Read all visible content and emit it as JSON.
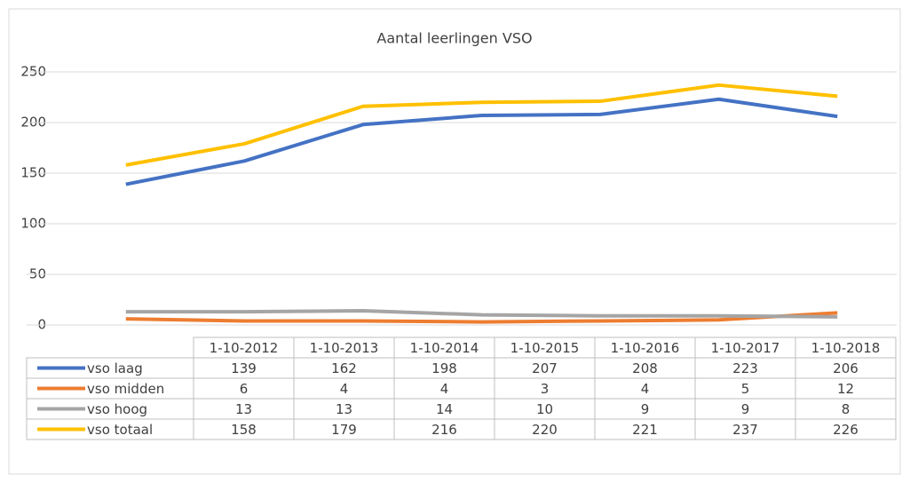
{
  "chart_data": {
    "type": "line",
    "title": "Aantal leerlingen VSO",
    "categories": [
      "1-10-2012",
      "1-10-2013",
      "1-10-2014",
      "1-10-2015",
      "1-10-2016",
      "1-10-2017",
      "1-10-2018"
    ],
    "series": [
      {
        "name": "vso laag",
        "color": "#4472c4",
        "values": [
          139,
          162,
          198,
          207,
          208,
          223,
          206
        ]
      },
      {
        "name": "vso midden",
        "color": "#ed7d31",
        "values": [
          6,
          4,
          4,
          3,
          4,
          5,
          12
        ]
      },
      {
        "name": "vso hoog",
        "color": "#a5a5a5",
        "values": [
          13,
          13,
          14,
          10,
          9,
          9,
          8
        ]
      },
      {
        "name": "vso totaal",
        "color": "#ffc000",
        "values": [
          158,
          179,
          216,
          220,
          221,
          237,
          226
        ]
      }
    ],
    "ylim": [
      0,
      250
    ],
    "yticks": [
      0,
      50,
      100,
      150,
      200,
      250
    ],
    "grid": true
  }
}
